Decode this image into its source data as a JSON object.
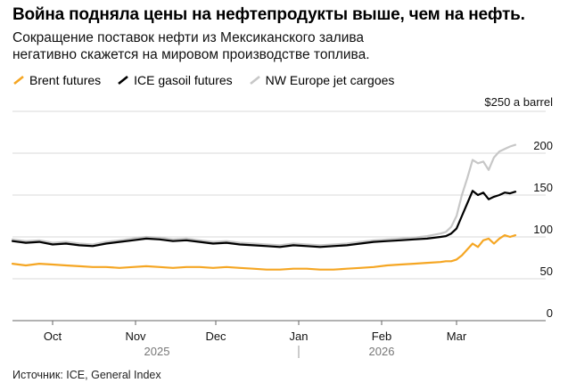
{
  "title": "Война подняла цены на нефтепродукты выше, чем на нефть.",
  "subtitle": "Сокращение поставок нефти из Мексиканского залива негативно скажется на мировом производстве топлива.",
  "source": "Источник: ICE, General Index",
  "colors": {
    "brent": "#f5a623",
    "gasoil": "#000000",
    "jet": "#c7c7c7",
    "grid": "#d9d9d9"
  },
  "chart_data": {
    "type": "line",
    "y_unit_label": "$250 a barrel",
    "ylim": [
      0,
      250
    ],
    "yticks": [
      0,
      50,
      100,
      150,
      200
    ],
    "xlim": [
      0,
      192
    ],
    "xlabel": "",
    "ylabel": "",
    "month_ticks": [
      {
        "label": "Oct",
        "x": 15
      },
      {
        "label": "Nov",
        "x": 46
      },
      {
        "label": "Dec",
        "x": 76
      },
      {
        "label": "Jan",
        "x": 107
      },
      {
        "label": "Feb",
        "x": 138
      },
      {
        "label": "Mar",
        "x": 166
      }
    ],
    "year_labels": [
      {
        "label": "2025",
        "x": 54
      },
      {
        "label": "2026",
        "x": 138
      }
    ],
    "year_divider_x": 107,
    "legend": [
      "Brent futures",
      "ICE gasoil futures",
      "NW Europe jet cargoes"
    ],
    "series": [
      {
        "name": "Brent futures",
        "key": "brent",
        "x": [
          0,
          5,
          10,
          15,
          20,
          25,
          30,
          35,
          40,
          45,
          50,
          55,
          60,
          65,
          70,
          75,
          80,
          85,
          90,
          95,
          100,
          105,
          110,
          115,
          120,
          125,
          130,
          135,
          140,
          145,
          150,
          155,
          160,
          162,
          164,
          166,
          168,
          170,
          172,
          174,
          176,
          178,
          180,
          182,
          184,
          186,
          188
        ],
        "values": [
          68,
          66,
          68,
          67,
          66,
          65,
          64,
          64,
          63,
          64,
          65,
          64,
          63,
          64,
          64,
          63,
          64,
          63,
          62,
          61,
          61,
          62,
          62,
          61,
          61,
          62,
          63,
          64,
          66,
          67,
          68,
          69,
          70,
          71,
          71,
          73,
          78,
          85,
          92,
          88,
          96,
          98,
          92,
          98,
          102,
          100,
          102
        ]
      },
      {
        "name": "ICE gasoil futures",
        "key": "gasoil",
        "x": [
          0,
          5,
          10,
          15,
          20,
          25,
          30,
          35,
          40,
          45,
          50,
          55,
          60,
          65,
          70,
          75,
          80,
          85,
          90,
          95,
          100,
          105,
          110,
          115,
          120,
          125,
          130,
          135,
          140,
          145,
          150,
          155,
          160,
          162,
          164,
          166,
          168,
          170,
          172,
          174,
          176,
          178,
          180,
          182,
          184,
          186,
          188
        ],
        "values": [
          95,
          93,
          94,
          91,
          92,
          90,
          89,
          92,
          94,
          96,
          98,
          97,
          95,
          96,
          94,
          92,
          93,
          91,
          90,
          89,
          88,
          90,
          89,
          88,
          89,
          90,
          92,
          94,
          95,
          96,
          97,
          98,
          100,
          101,
          104,
          110,
          125,
          140,
          155,
          150,
          153,
          145,
          148,
          150,
          153,
          152,
          154
        ]
      },
      {
        "name": "NW Europe jet cargoes",
        "key": "jet",
        "x": [
          0,
          5,
          10,
          15,
          20,
          25,
          30,
          35,
          40,
          45,
          50,
          55,
          60,
          65,
          70,
          75,
          80,
          85,
          90,
          95,
          100,
          105,
          110,
          115,
          120,
          125,
          130,
          135,
          140,
          145,
          150,
          155,
          160,
          162,
          164,
          166,
          168,
          170,
          172,
          174,
          176,
          178,
          180,
          182,
          184,
          186,
          188
        ],
        "values": [
          97,
          95,
          96,
          93,
          94,
          92,
          91,
          94,
          96,
          98,
          100,
          99,
          97,
          98,
          96,
          94,
          95,
          93,
          92,
          91,
          90,
          92,
          91,
          90,
          91,
          92,
          94,
          96,
          97,
          98,
          99,
          101,
          104,
          106,
          112,
          125,
          150,
          170,
          192,
          188,
          190,
          180,
          195,
          202,
          205,
          208,
          210
        ]
      }
    ]
  }
}
